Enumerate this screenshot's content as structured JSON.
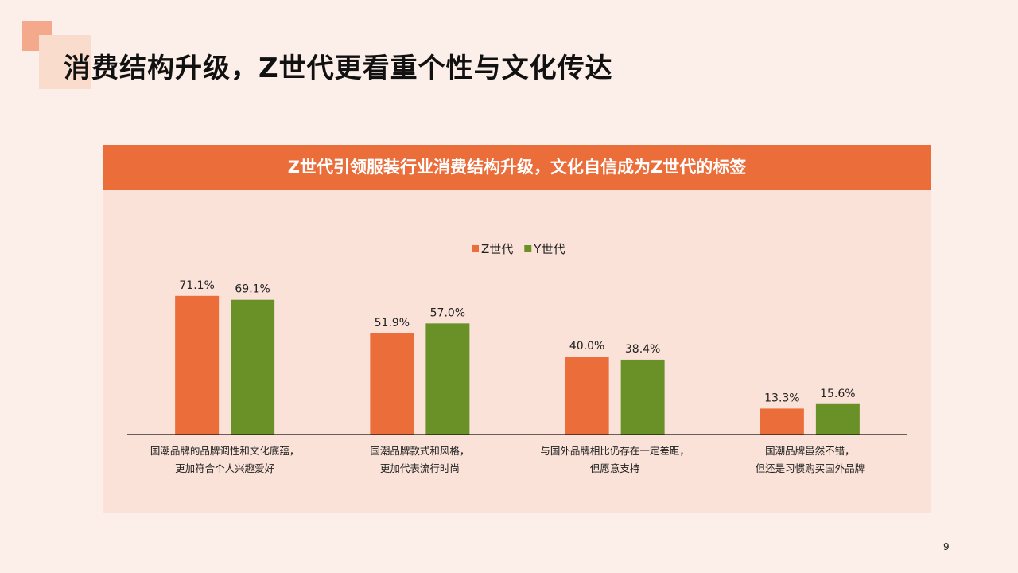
{
  "page": {
    "title": "消费结构升级，Z世代更看重个性与文化传达",
    "banner": "Z世代引领服装行业消费结构升级，文化自信成为Z世代的标签",
    "page_number": "9"
  },
  "colors": {
    "z_series": "#eb6d3a",
    "y_series": "#6a9128",
    "banner": "#eb6d3a",
    "panel": "#fae2d8",
    "background": "#fcefe9"
  },
  "chart_data": {
    "type": "bar",
    "title": "",
    "xlabel": "",
    "ylabel": "",
    "ylim": [
      0,
      80
    ],
    "grid": false,
    "legend": "top-center",
    "categories": [
      [
        "国潮品牌的品牌调性和文化底蕴，",
        "更加符合个人兴趣爱好"
      ],
      [
        "国潮品牌款式和风格，",
        "更加代表流行时尚"
      ],
      [
        "与国外品牌相比仍存在一定差距，",
        "但愿意支持"
      ],
      [
        "国潮品牌虽然不错，",
        "但还是习惯购买国外品牌"
      ]
    ],
    "series": [
      {
        "name": "Z世代",
        "color": "#eb6d3a",
        "values": [
          71.1,
          51.9,
          40.0,
          13.3
        ]
      },
      {
        "name": "Y世代",
        "color": "#6a9128",
        "values": [
          69.1,
          57.0,
          38.4,
          15.6
        ]
      }
    ]
  }
}
